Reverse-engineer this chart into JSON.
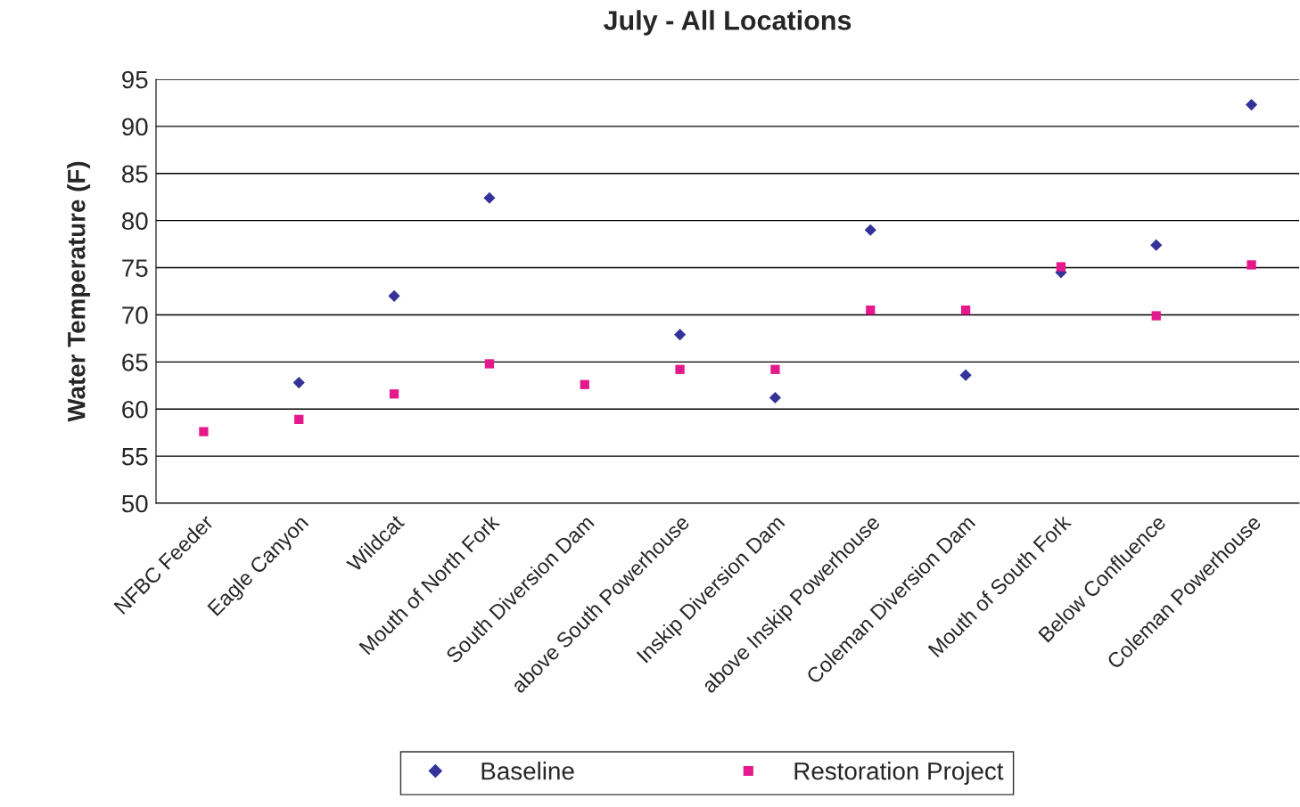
{
  "chart_data": {
    "type": "scatter",
    "title": "July - All Locations",
    "ylabel": "Water Temperature (F)",
    "categories": [
      "NFBC Feeder",
      "Eagle Canyon",
      "Wildcat",
      "Mouth of North Fork",
      "South Diversion Dam",
      "above South Powerhouse",
      "Inskip Diversion Dam",
      "above Inskip Powerhouse",
      "Coleman Diversion Dam",
      "Mouth of South Fork",
      "Below Confluence",
      "Coleman Powerhouse"
    ],
    "series": [
      {
        "name": "Baseline",
        "color": "#333399",
        "marker": "diamond",
        "values": [
          null,
          62.8,
          72.0,
          82.4,
          null,
          67.9,
          61.2,
          79.0,
          63.6,
          74.5,
          77.4,
          92.3
        ]
      },
      {
        "name": "Restoration Project",
        "color": "#e6198c",
        "marker": "square",
        "values": [
          57.6,
          58.9,
          61.6,
          64.8,
          62.6,
          64.2,
          64.2,
          70.5,
          70.5,
          75.1,
          69.9,
          75.3
        ]
      }
    ],
    "ylim": [
      50,
      95
    ],
    "yticks": [
      50,
      55,
      60,
      65,
      70,
      75,
      80,
      85,
      90,
      95
    ],
    "grid": "y",
    "legend": "bottom"
  }
}
